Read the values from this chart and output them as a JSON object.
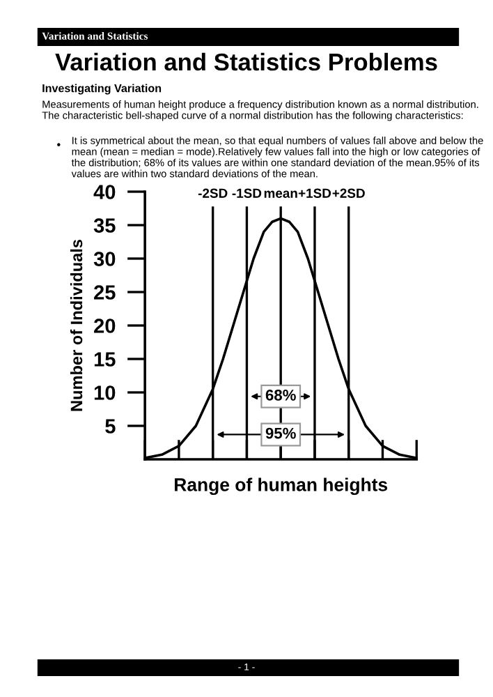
{
  "chart_data": {
    "type": "line",
    "title": "Variation and Statistics Problems",
    "xlabel": "Range of human heights",
    "ylabel": "Number of Individuals",
    "x": [
      -4,
      -3.5,
      -3,
      -2.5,
      -2,
      -1.7,
      -1.4,
      -1.1,
      -0.8,
      -0.5,
      -0.25,
      0,
      0.25,
      0.5,
      0.8,
      1.1,
      1.4,
      1.7,
      2,
      2.5,
      3,
      3.5,
      4
    ],
    "series": [
      {
        "color": "#000000",
        "values": [
          0.2,
          0.7,
          2,
          5,
          10.5,
          15,
          20,
          25,
          30,
          34,
          35.5,
          36,
          35.5,
          34,
          30,
          25,
          20,
          15,
          10.5,
          5,
          2,
          0.7,
          0.2
        ]
      }
    ],
    "xlim": [
      -4,
      4
    ],
    "xticks": [
      {
        "value": -4,
        "label": null
      },
      {
        "value": -3,
        "label": null
      },
      {
        "value": -2,
        "label": null
      },
      {
        "value": -1,
        "label": null
      },
      {
        "value": 0,
        "label": null
      },
      {
        "value": 1,
        "label": null
      },
      {
        "value": 2,
        "label": null
      },
      {
        "value": 3,
        "label": null
      },
      {
        "value": 4,
        "label": null
      }
    ],
    "ylim": [
      0,
      40
    ],
    "yticks": [
      5,
      10,
      15,
      20,
      25,
      30,
      35,
      40
    ],
    "tick_labels": "y",
    "grid": false,
    "marker": "none",
    "line_style": "solid",
    "ref_lines": [
      {
        "axis": "x",
        "value": -2,
        "label": "-2SD"
      },
      {
        "axis": "x",
        "value": -1,
        "label": "-1SD"
      },
      {
        "axis": "x",
        "value": 0,
        "label": "mean"
      },
      {
        "axis": "x",
        "value": 1,
        "label": "+1SD"
      },
      {
        "axis": "x",
        "value": 2,
        "label": "+2SD"
      }
    ],
    "annotations": [
      {
        "text": "68%",
        "x": 0,
        "y": 9.4
      },
      {
        "text": "95%",
        "x": 0,
        "y": 3.7
      },
      "Variation and Statistics",
      "Investigating Variation",
      "Measurements of human height produce a frequency distribution known as a normal distribution. The characteristic bell-shaped curve of a normal distribution has the following characteristics:",
      "It is symmetrical about the mean, so that equal numbers of values fall above and below the mean (mean = median = mode).Relatively few values fall into the high or low categories of the distribution; 68% of its values are within one standard deviation of the mean.95% of its values are within two standard deviations of the mean.",
      "- 1 -",
      "•"
    ]
  }
}
